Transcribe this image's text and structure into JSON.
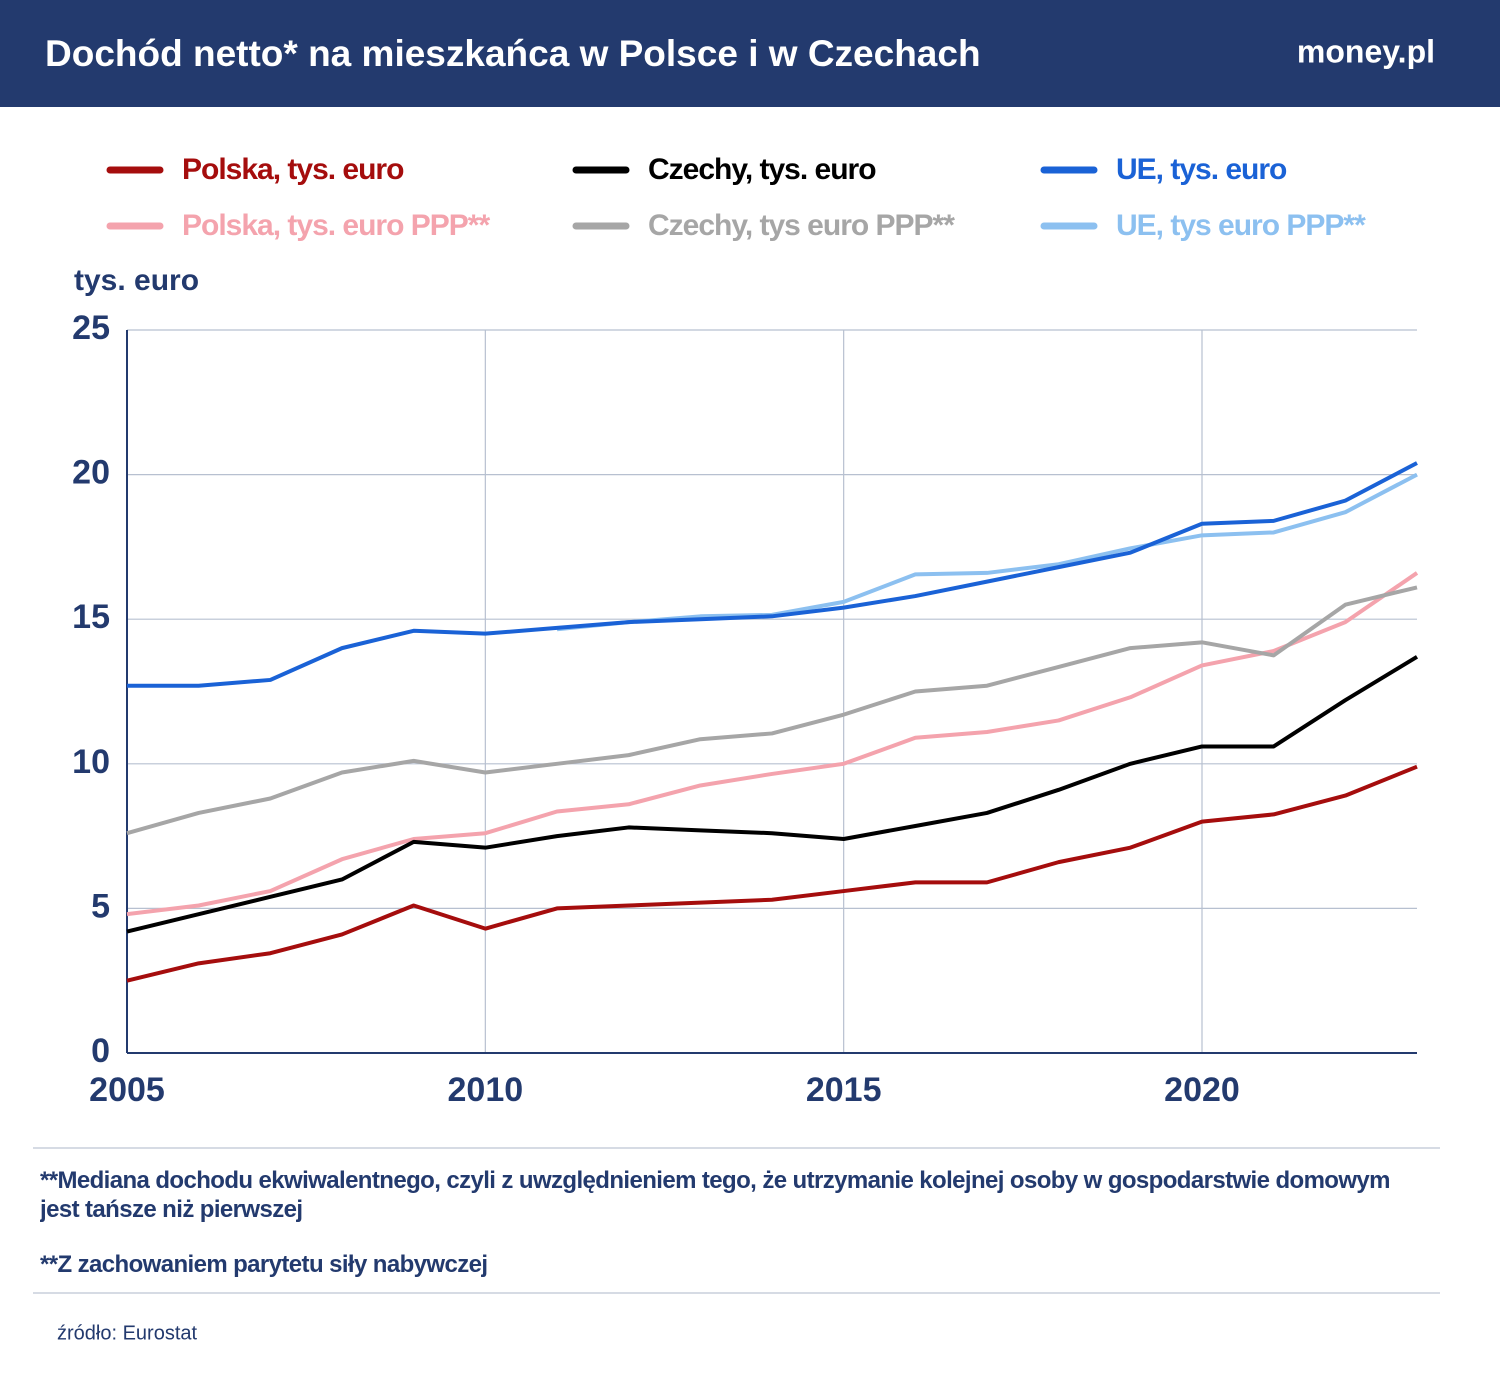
{
  "header": {
    "title": "Dochód netto* na mieszkańca w Polsce i w Czechach",
    "logo": "money.pl"
  },
  "chart_data": {
    "type": "line",
    "y_axis_label": "tys. euro",
    "x": [
      2005,
      2006,
      2007,
      2008,
      2009,
      2010,
      2011,
      2012,
      2013,
      2014,
      2015,
      2016,
      2017,
      2018,
      2019,
      2020,
      2021,
      2022,
      2023
    ],
    "xlim": [
      2005,
      2023
    ],
    "xticks": [
      2005,
      2010,
      2015,
      2020
    ],
    "ylim": [
      0,
      25
    ],
    "yticks": [
      0,
      5,
      10,
      15,
      20,
      25
    ],
    "grid": true,
    "series": [
      {
        "name": "Polska, tys. euro",
        "color": "#a50d0d",
        "values": [
          2.5,
          3.1,
          3.45,
          4.1,
          5.1,
          4.3,
          5.0,
          5.1,
          5.2,
          5.3,
          5.6,
          5.9,
          5.9,
          6.6,
          7.1,
          8.0,
          8.25,
          8.9,
          9.9
        ]
      },
      {
        "name": "Czechy, tys. euro",
        "color": "#000000",
        "values": [
          4.2,
          4.8,
          5.4,
          6.0,
          7.3,
          7.1,
          7.5,
          7.8,
          7.7,
          7.6,
          7.4,
          7.85,
          8.3,
          9.1,
          10.0,
          10.6,
          10.6,
          12.2,
          13.7
        ]
      },
      {
        "name": "UE, tys. euro",
        "color": "#1a62d6",
        "values": [
          12.7,
          12.7,
          12.9,
          14.0,
          14.6,
          14.5,
          14.7,
          14.9,
          15.0,
          15.1,
          15.4,
          15.8,
          16.3,
          16.8,
          17.3,
          18.3,
          18.4,
          19.1,
          20.4
        ]
      },
      {
        "name": "Polska, tys. euro PPP**",
        "color": "#f4a3ad",
        "values": [
          4.8,
          5.1,
          5.6,
          6.7,
          7.4,
          7.6,
          8.35,
          8.6,
          9.25,
          9.65,
          10.0,
          10.9,
          11.1,
          11.5,
          12.3,
          13.4,
          13.9,
          14.9,
          16.6
        ]
      },
      {
        "name": "Czechy, tys euro PPP**",
        "color": "#a6a6a6",
        "values": [
          7.6,
          8.3,
          8.8,
          9.7,
          10.1,
          9.7,
          10.0,
          10.3,
          10.85,
          11.05,
          11.7,
          12.5,
          12.7,
          13.35,
          14.0,
          14.2,
          13.75,
          15.5,
          16.1
        ]
      },
      {
        "name": "UE, tys euro PPP**",
        "color": "#8cc0f0",
        "values": [
          null,
          null,
          null,
          null,
          null,
          null,
          14.65,
          14.9,
          15.1,
          15.15,
          15.6,
          16.55,
          16.6,
          16.9,
          17.45,
          17.9,
          18.0,
          18.7,
          20.0
        ]
      }
    ]
  },
  "notes": [
    "**Mediana dochodu ekwiwalentnego, czyli z uwzględnieniem tego, że utrzymanie kolejnej osoby w gospodarstwie domowym jest tańsze niż pierwszej",
    "**Z zachowaniem parytetu siły nabywczej"
  ],
  "source": "źródło: Eurostat"
}
